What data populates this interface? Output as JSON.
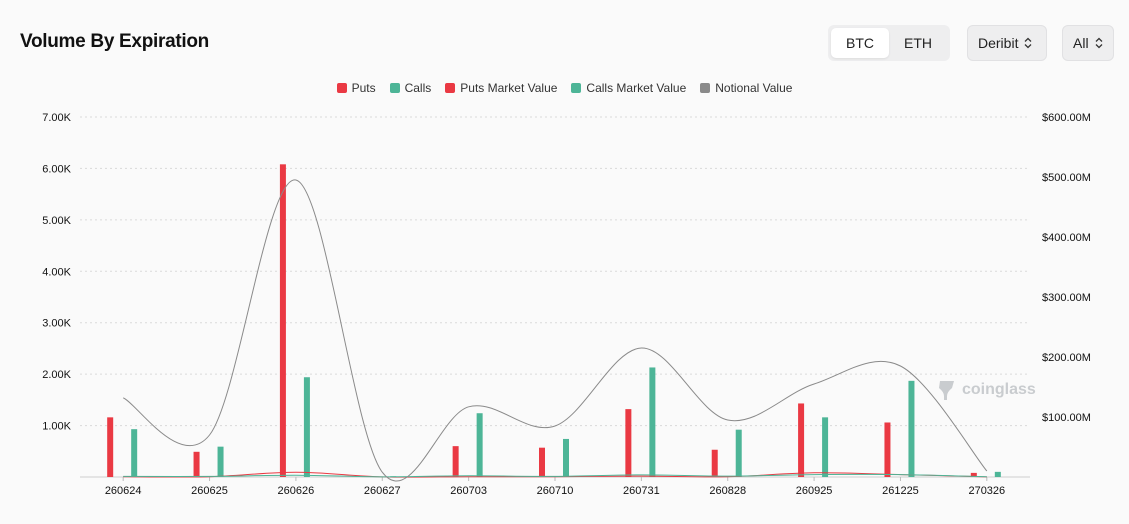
{
  "header": {
    "title": "Volume By Expiration"
  },
  "currency_tabs": [
    {
      "label": "BTC",
      "active": true
    },
    {
      "label": "ETH",
      "active": false
    }
  ],
  "exchange_select": {
    "value": "Deribit"
  },
  "range_select": {
    "value": "All"
  },
  "watermark": "coinglass",
  "colors": {
    "puts": "#ea3943",
    "calls": "#4db597",
    "notional": "#8a8a8a",
    "grid": "#d9d9d9"
  },
  "chart_data": {
    "type": "bar",
    "categories": [
      "260624",
      "260625",
      "260626",
      "260627",
      "260703",
      "260710",
      "260731",
      "260828",
      "260925",
      "261225",
      "270326"
    ],
    "legend": [
      "Puts",
      "Calls",
      "Puts Market Value",
      "Calls Market Value",
      "Notional Value"
    ],
    "left_axis": {
      "ticks": [
        "1.00K",
        "2.00K",
        "3.00K",
        "4.00K",
        "5.00K",
        "6.00K",
        "7.00K"
      ],
      "ylim": [
        0,
        7000
      ]
    },
    "right_axis": {
      "ticks": [
        "$100.00M",
        "$200.00M",
        "$300.00M",
        "$400.00M",
        "$500.00M",
        "$600.00M"
      ],
      "ylim": [
        0,
        600
      ]
    },
    "series": [
      {
        "name": "Puts",
        "type": "bar",
        "axis": "left",
        "values": [
          1160,
          490,
          6080,
          10,
          600,
          570,
          1320,
          530,
          1430,
          1060,
          80
        ]
      },
      {
        "name": "Calls",
        "type": "bar",
        "axis": "left",
        "values": [
          930,
          590,
          1940,
          15,
          1240,
          740,
          2130,
          920,
          1160,
          1870,
          100
        ]
      },
      {
        "name": "Puts Market Value",
        "type": "line",
        "axis": "right",
        "values": [
          0.5,
          0.5,
          8,
          0.3,
          0.5,
          0.5,
          1.5,
          0.5,
          7,
          4,
          0.3
        ]
      },
      {
        "name": "Calls Market Value",
        "type": "line",
        "axis": "right",
        "values": [
          1,
          1,
          3,
          0.3,
          2,
          1,
          3.5,
          1.5,
          4,
          4,
          0.5
        ]
      },
      {
        "name": "Notional Value",
        "type": "line",
        "axis": "right",
        "values": [
          132,
          70,
          495,
          8,
          117,
          85,
          215,
          95,
          155,
          185,
          10
        ]
      }
    ]
  }
}
